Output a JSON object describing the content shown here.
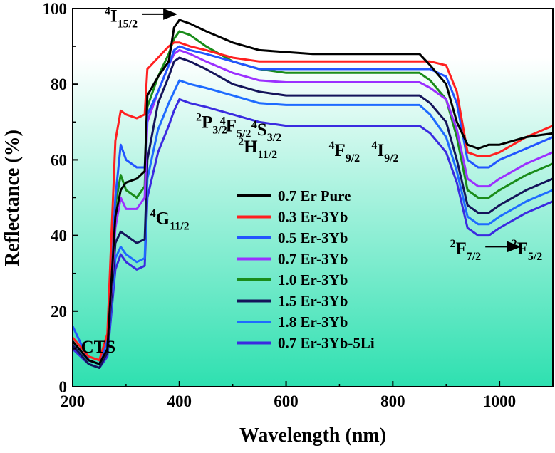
{
  "chart_data": {
    "type": "line",
    "title": "",
    "xlabel": "Wavelength (nm)",
    "ylabel": "Reflectance (%)",
    "xlim": [
      200,
      1100
    ],
    "ylim": [
      0,
      100
    ],
    "xticks": [
      200,
      400,
      600,
      800,
      1000
    ],
    "yticks": [
      0,
      20,
      40,
      60,
      80,
      100
    ],
    "background": {
      "top_color": "#ffffff",
      "bottom_color": "#2ee0b0"
    },
    "legend_position": "center",
    "series": [
      {
        "name": "0.7 Er Pure",
        "color": "#000000",
        "x": [
          200,
          230,
          250,
          265,
          280,
          290,
          300,
          320,
          335,
          340,
          360,
          380,
          390,
          400,
          420,
          450,
          500,
          550,
          600,
          650,
          700,
          750,
          800,
          820,
          850,
          870,
          900,
          920,
          940,
          960,
          980,
          1000,
          1050,
          1100
        ],
        "y": [
          12,
          7,
          6,
          10,
          45,
          52,
          54,
          55,
          57,
          77,
          82,
          86,
          95,
          97,
          96,
          94,
          91,
          89,
          88.5,
          88,
          88,
          88,
          88,
          88,
          88,
          85,
          80,
          70,
          64,
          63,
          64,
          64,
          66,
          67
        ]
      },
      {
        "name": "0.3 Er-3Yb",
        "color": "#ff2020",
        "x": [
          200,
          230,
          250,
          265,
          280,
          290,
          300,
          320,
          335,
          340,
          360,
          380,
          390,
          400,
          420,
          450,
          500,
          550,
          600,
          650,
          700,
          750,
          800,
          820,
          850,
          870,
          900,
          920,
          940,
          960,
          980,
          1000,
          1050,
          1100
        ],
        "y": [
          13,
          8,
          7,
          14,
          65,
          73,
          72,
          71,
          72,
          84,
          87,
          90,
          91,
          91,
          90,
          89,
          87,
          86,
          86,
          86,
          86,
          86,
          86,
          86,
          86,
          86,
          85,
          78,
          62,
          61,
          61,
          62,
          66,
          69
        ]
      },
      {
        "name": "0.5 Er-3Yb",
        "color": "#2255ff",
        "x": [
          200,
          230,
          250,
          265,
          280,
          290,
          300,
          320,
          335,
          340,
          360,
          380,
          390,
          400,
          420,
          450,
          500,
          550,
          600,
          650,
          700,
          750,
          800,
          820,
          850,
          870,
          900,
          920,
          940,
          960,
          980,
          1000,
          1050,
          1100
        ],
        "y": [
          16,
          7,
          6,
          12,
          50,
          64,
          60,
          58,
          58,
          72,
          78,
          85,
          89,
          90,
          89,
          88,
          86,
          84,
          84,
          84,
          84,
          84,
          84,
          84,
          84,
          84,
          82,
          75,
          60,
          58,
          58,
          60,
          63,
          66
        ]
      },
      {
        "name": "0.7 Er-3Yb",
        "color": "#9b30ff",
        "x": [
          200,
          230,
          250,
          265,
          280,
          290,
          300,
          320,
          335,
          340,
          360,
          380,
          390,
          400,
          420,
          450,
          500,
          550,
          600,
          650,
          700,
          750,
          800,
          820,
          850,
          870,
          900,
          920,
          940,
          960,
          980,
          1000,
          1050,
          1100
        ],
        "y": [
          12,
          7,
          6,
          10,
          42,
          50,
          47,
          47,
          50,
          70,
          78,
          85,
          88,
          89,
          88,
          86,
          83,
          81,
          80.5,
          80.5,
          80.5,
          80.5,
          80.5,
          80.5,
          80.5,
          79,
          76,
          68,
          55,
          53,
          53,
          55,
          59,
          62
        ]
      },
      {
        "name": "1.0 Er-3Yb",
        "color": "#1a8c1a",
        "x": [
          200,
          230,
          250,
          265,
          280,
          290,
          300,
          320,
          335,
          340,
          360,
          380,
          390,
          400,
          420,
          450,
          500,
          550,
          600,
          650,
          700,
          750,
          800,
          820,
          850,
          870,
          900,
          920,
          940,
          960,
          980,
          1000,
          1050,
          1100
        ],
        "y": [
          12,
          7,
          6,
          10,
          48,
          56,
          52,
          50,
          53,
          74,
          82,
          88,
          92,
          94,
          93,
          90,
          86,
          84,
          83,
          83,
          83,
          83,
          83,
          83,
          83,
          81,
          76,
          66,
          52,
          50,
          50,
          52,
          56,
          59
        ]
      },
      {
        "name": "1.5 Er-3Yb",
        "color": "#14145a",
        "x": [
          200,
          230,
          250,
          265,
          280,
          290,
          300,
          320,
          335,
          340,
          360,
          380,
          390,
          400,
          420,
          450,
          500,
          550,
          600,
          650,
          700,
          750,
          800,
          820,
          850,
          870,
          900,
          920,
          940,
          960,
          980,
          1000,
          1050,
          1100
        ],
        "y": [
          11,
          6,
          5,
          9,
          38,
          41,
          40,
          38,
          39,
          60,
          75,
          82,
          86,
          87,
          86,
          84,
          80,
          78,
          77,
          77,
          77,
          77,
          77,
          77,
          77,
          75,
          70,
          60,
          48,
          46,
          46,
          48,
          52,
          55
        ]
      },
      {
        "name": "1.8 Er-3Yb",
        "color": "#1e6bff",
        "x": [
          200,
          230,
          250,
          265,
          280,
          290,
          300,
          320,
          335,
          340,
          360,
          380,
          390,
          400,
          420,
          450,
          500,
          550,
          600,
          650,
          700,
          750,
          800,
          820,
          850,
          870,
          900,
          920,
          940,
          960,
          980,
          1000,
          1050,
          1100
        ],
        "y": [
          11,
          6,
          5,
          9,
          34,
          37,
          35,
          33,
          34,
          55,
          68,
          75,
          78,
          81,
          80,
          79,
          77,
          75,
          74.5,
          74.5,
          74.5,
          74.5,
          74.5,
          74.5,
          74.5,
          72,
          66,
          57,
          45,
          43,
          43,
          45,
          49,
          52
        ]
      },
      {
        "name": "0.7 Er-3Yb-5Li",
        "color": "#3a2be0",
        "x": [
          200,
          230,
          250,
          265,
          280,
          290,
          300,
          320,
          335,
          340,
          360,
          380,
          390,
          400,
          420,
          450,
          500,
          550,
          600,
          650,
          700,
          750,
          800,
          820,
          850,
          870,
          900,
          920,
          940,
          960,
          980,
          1000,
          1050,
          1100
        ],
        "y": [
          10,
          6,
          5,
          8,
          31,
          35,
          33,
          31,
          32,
          50,
          62,
          69,
          73,
          76,
          75,
          74,
          72,
          70,
          69,
          69,
          69,
          69,
          69,
          69,
          69,
          67,
          62,
          54,
          42,
          40,
          40,
          42,
          46,
          49
        ]
      }
    ],
    "annotations": [
      {
        "main": "4",
        "rest": "I",
        "sub": "15/2",
        "x": 260,
        "y": 96.5,
        "arrow": true
      },
      {
        "main": "2",
        "rest": "P",
        "sub": "3/2",
        "x": 431,
        "y": 68.5
      },
      {
        "main": "4",
        "rest": "F",
        "sub": "5/2",
        "x": 476,
        "y": 67.5
      },
      {
        "main": "2",
        "rest": "H",
        "sub": "11/2",
        "x": 510,
        "y": 62
      },
      {
        "main": "4",
        "rest": "S",
        "sub": "3/2",
        "x": 535,
        "y": 66.5
      },
      {
        "main": "4",
        "rest": "F",
        "sub": "9/2",
        "x": 680,
        "y": 61
      },
      {
        "main": "4",
        "rest": "I",
        "sub": "9/2",
        "x": 760,
        "y": 61
      },
      {
        "main": "4",
        "rest": "G",
        "sub": "11/2",
        "x": 345,
        "y": 43
      },
      {
        "main": "2",
        "rest": "F",
        "sub": "7/2",
        "x": 907,
        "y": 35,
        "arrow": true
      },
      {
        "main": "2",
        "rest": "F",
        "sub": "5/2",
        "x": 1022,
        "y": 35
      }
    ],
    "cts_label": {
      "text": "CTS",
      "x": 248,
      "y": 9
    }
  }
}
